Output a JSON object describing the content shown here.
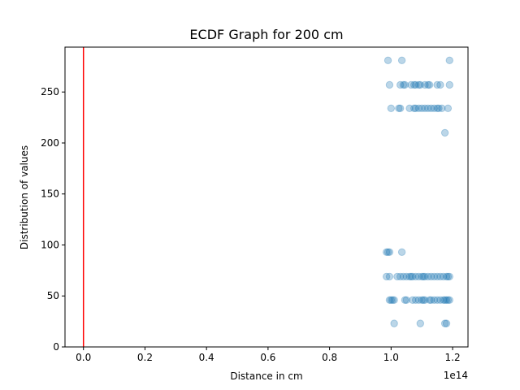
{
  "chart_data": {
    "type": "scatter",
    "title": "ECDF Graph for 200 cm",
    "xlabel": "Distance in cm",
    "ylabel": "Distribution of values",
    "x_offset_label": "1e14",
    "x_units_scale": 100000000000000.0,
    "xlim": [
      -0.06,
      1.25
    ],
    "ylim": [
      0,
      294
    ],
    "x_ticks": [
      0.0,
      0.2,
      0.4,
      0.6,
      0.8,
      1.0,
      1.2
    ],
    "x_tick_labels": [
      "0.0",
      "0.2",
      "0.4",
      "0.6",
      "0.8",
      "1.0",
      "1.2"
    ],
    "y_ticks": [
      0,
      50,
      100,
      150,
      200,
      250
    ],
    "y_tick_labels": [
      "0",
      "50",
      "100",
      "150",
      "200",
      "250"
    ],
    "grid": false,
    "legend": false,
    "colors": {
      "points": "#1f77b4",
      "vline": "#ff0000"
    },
    "vline_x": 0.0,
    "point_alpha": 0.3,
    "series": [
      {
        "points": [
          [
            0.99,
            281
          ],
          [
            1.035,
            281
          ],
          [
            1.19,
            281
          ],
          [
            0.995,
            257
          ],
          [
            1.03,
            257
          ],
          [
            1.04,
            257
          ],
          [
            1.045,
            257
          ],
          [
            1.065,
            257
          ],
          [
            1.075,
            257
          ],
          [
            1.08,
            257
          ],
          [
            1.09,
            257
          ],
          [
            1.095,
            257
          ],
          [
            1.11,
            257
          ],
          [
            1.12,
            257
          ],
          [
            1.125,
            257
          ],
          [
            1.15,
            257
          ],
          [
            1.16,
            257
          ],
          [
            1.19,
            257
          ],
          [
            1.0,
            234
          ],
          [
            1.025,
            234
          ],
          [
            1.03,
            234
          ],
          [
            1.06,
            234
          ],
          [
            1.075,
            234
          ],
          [
            1.08,
            234
          ],
          [
            1.09,
            234
          ],
          [
            1.1,
            234
          ],
          [
            1.11,
            234
          ],
          [
            1.12,
            234
          ],
          [
            1.13,
            234
          ],
          [
            1.14,
            234
          ],
          [
            1.15,
            234
          ],
          [
            1.155,
            234
          ],
          [
            1.165,
            234
          ],
          [
            1.185,
            234
          ],
          [
            1.175,
            210
          ],
          [
            0.985,
            93
          ],
          [
            0.99,
            93
          ],
          [
            0.995,
            93
          ],
          [
            1.035,
            93
          ],
          [
            0.985,
            69
          ],
          [
            0.995,
            69
          ],
          [
            1.02,
            69
          ],
          [
            1.03,
            69
          ],
          [
            1.04,
            69
          ],
          [
            1.05,
            69
          ],
          [
            1.06,
            69
          ],
          [
            1.065,
            69
          ],
          [
            1.07,
            69
          ],
          [
            1.08,
            69
          ],
          [
            1.09,
            69
          ],
          [
            1.1,
            69
          ],
          [
            1.105,
            69
          ],
          [
            1.11,
            69
          ],
          [
            1.12,
            69
          ],
          [
            1.13,
            69
          ],
          [
            1.14,
            69
          ],
          [
            1.15,
            69
          ],
          [
            1.16,
            69
          ],
          [
            1.17,
            69
          ],
          [
            1.18,
            69
          ],
          [
            1.185,
            69
          ],
          [
            1.19,
            69
          ],
          [
            0.995,
            46
          ],
          [
            1.0,
            46
          ],
          [
            1.005,
            46
          ],
          [
            1.01,
            46
          ],
          [
            1.045,
            46
          ],
          [
            1.05,
            46
          ],
          [
            1.07,
            46
          ],
          [
            1.08,
            46
          ],
          [
            1.09,
            46
          ],
          [
            1.1,
            46
          ],
          [
            1.105,
            46
          ],
          [
            1.11,
            46
          ],
          [
            1.125,
            46
          ],
          [
            1.13,
            46
          ],
          [
            1.14,
            46
          ],
          [
            1.15,
            46
          ],
          [
            1.16,
            46
          ],
          [
            1.17,
            46
          ],
          [
            1.175,
            46
          ],
          [
            1.18,
            46
          ],
          [
            1.185,
            46
          ],
          [
            1.19,
            46
          ],
          [
            1.01,
            23
          ],
          [
            1.095,
            23
          ],
          [
            1.175,
            23
          ],
          [
            1.18,
            23
          ]
        ]
      }
    ]
  }
}
